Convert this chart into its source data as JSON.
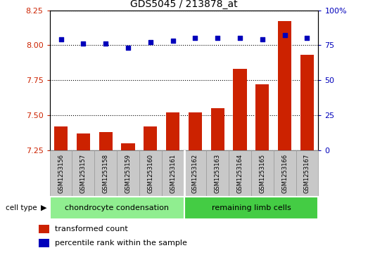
{
  "title": "GDS5045 / 213878_at",
  "samples": [
    "GSM1253156",
    "GSM1253157",
    "GSM1253158",
    "GSM1253159",
    "GSM1253160",
    "GSM1253161",
    "GSM1253162",
    "GSM1253163",
    "GSM1253164",
    "GSM1253165",
    "GSM1253166",
    "GSM1253167"
  ],
  "transformed_count": [
    7.42,
    7.37,
    7.38,
    7.3,
    7.42,
    7.52,
    7.52,
    7.55,
    7.83,
    7.72,
    8.17,
    7.93
  ],
  "percentile_rank": [
    79,
    76,
    76,
    73,
    77,
    78,
    80,
    80,
    80,
    79,
    82,
    80
  ],
  "ylim_left": [
    7.25,
    8.25
  ],
  "ylim_right": [
    0,
    100
  ],
  "yticks_left": [
    7.25,
    7.5,
    7.75,
    8.0,
    8.25
  ],
  "yticks_right": [
    0,
    25,
    50,
    75,
    100
  ],
  "cell_type_groups": [
    {
      "label": "chondrocyte condensation",
      "start": 0,
      "end": 5,
      "color": "#90EE90"
    },
    {
      "label": "remaining limb cells",
      "start": 6,
      "end": 11,
      "color": "#44CC44"
    }
  ],
  "bar_color": "#CC2200",
  "dot_color": "#0000BB",
  "grid_color": "#000000",
  "tick_color_left": "#CC2200",
  "tick_color_right": "#0000BB",
  "sample_bg_color": "#C8C8C8",
  "sample_border_color": "#999999",
  "legend_items": [
    {
      "label": "transformed count",
      "color": "#CC2200"
    },
    {
      "label": "percentile rank within the sample",
      "color": "#0000BB"
    }
  ],
  "fig_bg": "#FFFFFF"
}
